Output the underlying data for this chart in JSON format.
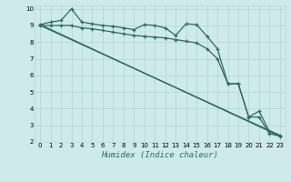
{
  "xlabel": "Humidex (Indice chaleur)",
  "background_color": "#ceeaea",
  "grid_color": "#b8d8d8",
  "line_color": "#2d6b5e",
  "xlim": [
    -0.5,
    23.5
  ],
  "ylim": [
    2,
    10.2
  ],
  "xticks": [
    0,
    1,
    2,
    3,
    4,
    5,
    6,
    7,
    8,
    9,
    10,
    11,
    12,
    13,
    14,
    15,
    16,
    17,
    18,
    19,
    20,
    21,
    22,
    23
  ],
  "yticks": [
    2,
    3,
    4,
    5,
    6,
    7,
    8,
    9,
    10
  ],
  "line1_x": [
    0,
    1,
    2,
    3,
    4,
    5,
    6,
    7,
    8,
    9,
    10,
    11,
    12,
    13,
    14,
    15,
    16,
    17,
    18,
    19,
    20,
    21,
    22,
    23
  ],
  "line1_y": [
    9.05,
    9.2,
    9.3,
    10.0,
    9.2,
    9.1,
    9.0,
    8.95,
    8.85,
    8.75,
    9.05,
    9.0,
    8.85,
    8.4,
    9.1,
    9.05,
    8.35,
    7.6,
    5.5,
    5.5,
    3.5,
    3.85,
    2.6,
    2.4
  ],
  "line2_x": [
    0,
    1,
    2,
    3,
    4,
    5,
    6,
    7,
    8,
    9,
    10,
    11,
    12,
    13,
    14,
    15,
    16,
    17,
    18,
    19,
    20,
    21,
    22,
    23
  ],
  "line2_y": [
    9.0,
    9.0,
    9.0,
    9.0,
    8.85,
    8.8,
    8.7,
    8.6,
    8.5,
    8.4,
    8.35,
    8.3,
    8.25,
    8.15,
    8.05,
    7.95,
    7.6,
    7.0,
    5.5,
    5.5,
    3.5,
    3.5,
    2.5,
    2.35
  ],
  "line3_x": [
    0,
    23
  ],
  "line3_y": [
    9.05,
    2.35
  ],
  "line4_x": [
    0,
    23
  ],
  "line4_y": [
    9.0,
    2.4
  ]
}
